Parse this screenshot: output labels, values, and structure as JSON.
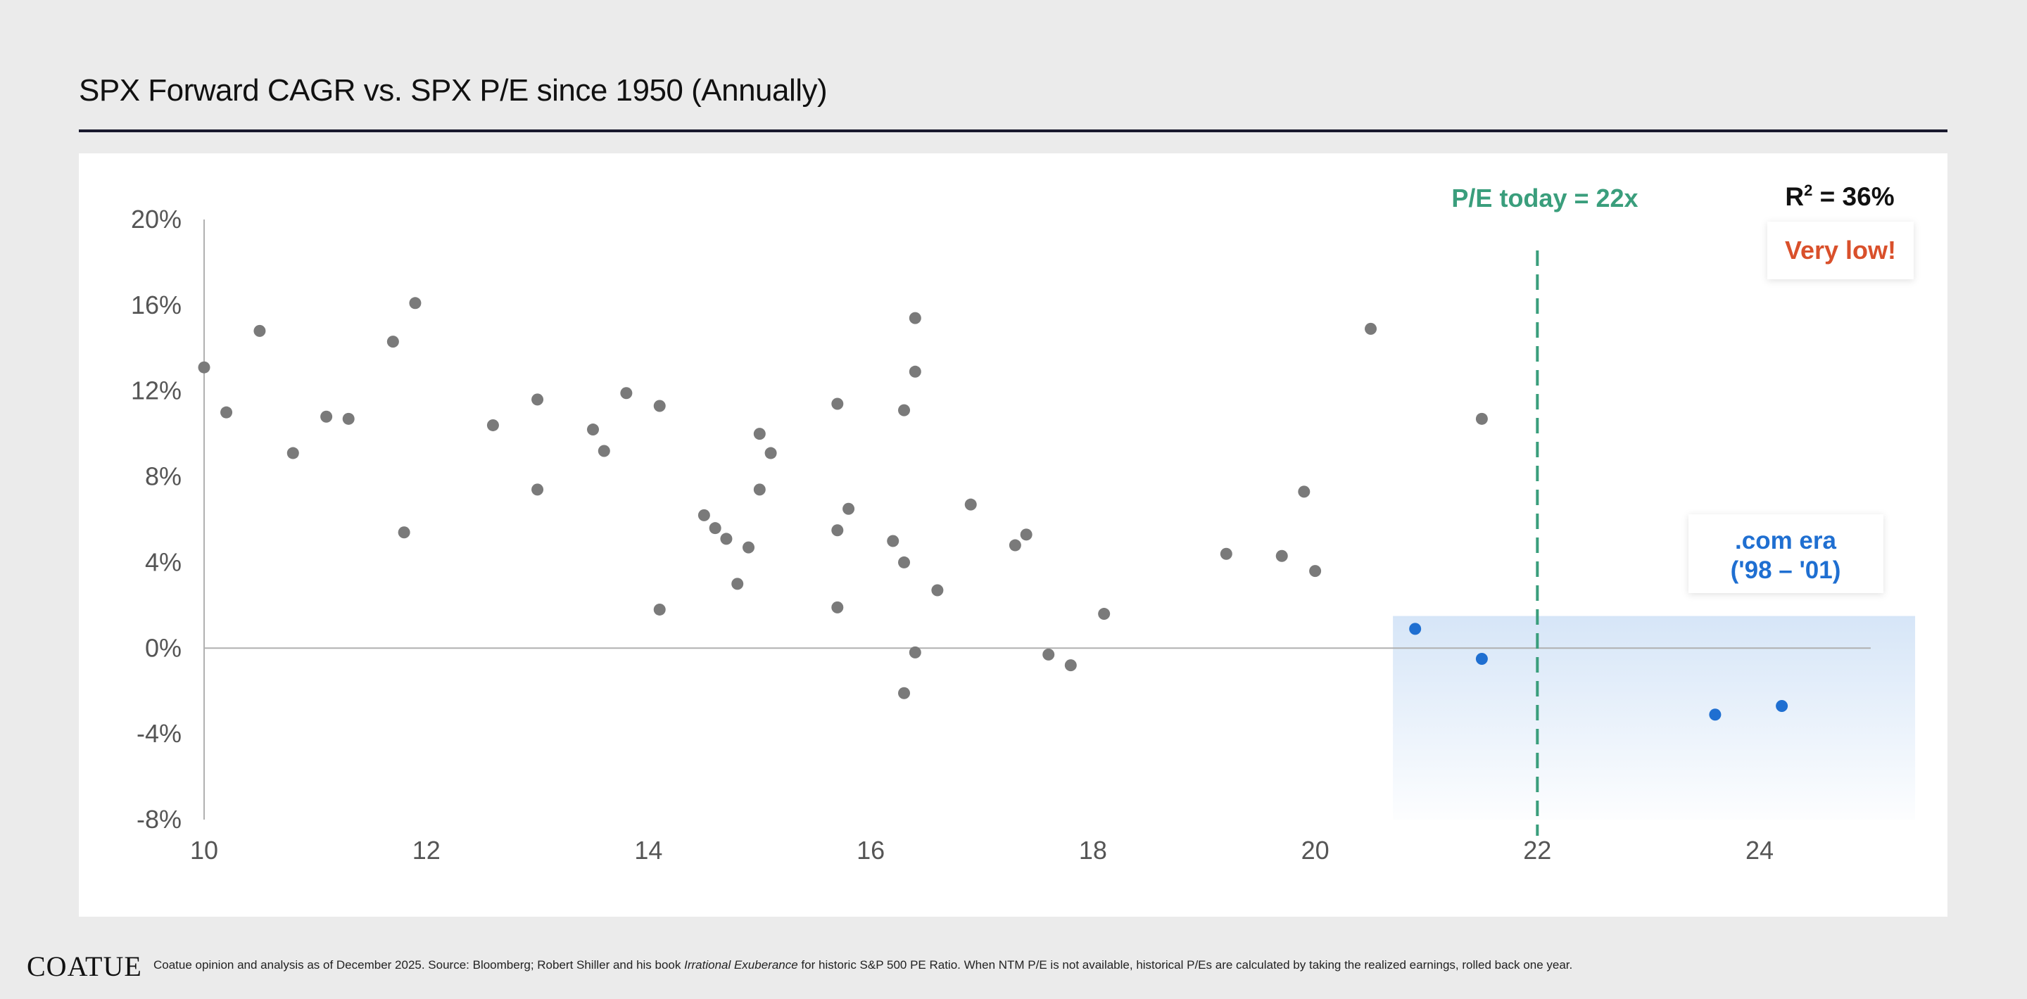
{
  "header": {
    "title": "SPX Forward CAGR vs. SPX P/E since 1950 (Annually)"
  },
  "footer": {
    "logo": "COATUE",
    "note_prefix": "Coatue opinion and analysis as of December 2025. Source: Bloomberg; Robert Shiller and his book ",
    "note_italic": "Irrational Exuberance",
    "note_suffix": " for historic S&P 500 PE Ratio. When NTM P/E is not available, historical P/Es are calculated by taking the realized earnings, rolled back one year."
  },
  "colors": {
    "point": "#7a7a7a",
    "highlight_point": "#1f6fd1",
    "today_line": "#3a9e7c",
    "very_low": "#d9502b",
    "axis": "#b0b0b0",
    "shade_top": "#cfe1f6"
  },
  "chart_data": {
    "type": "scatter",
    "xlim": [
      10,
      25
    ],
    "ylim": [
      -8,
      20
    ],
    "x_ticks": [
      "10",
      "12",
      "14",
      "16",
      "18",
      "20",
      "22",
      "24"
    ],
    "y_ticks": [
      "20%",
      "16%",
      "12%",
      "8%",
      "4%",
      "0%",
      "-4%",
      "-8%"
    ],
    "grid": false,
    "series": [
      {
        "points": [
          [
            10.0,
            13.1
          ],
          [
            10.2,
            11.0
          ],
          [
            10.5,
            14.8
          ],
          [
            10.8,
            9.1
          ],
          [
            11.1,
            10.8
          ],
          [
            11.3,
            10.7
          ],
          [
            11.7,
            14.3
          ],
          [
            11.8,
            5.4
          ],
          [
            11.9,
            16.1
          ],
          [
            12.6,
            10.4
          ],
          [
            13.0,
            11.6
          ],
          [
            13.0,
            7.4
          ],
          [
            13.5,
            10.2
          ],
          [
            13.6,
            9.2
          ],
          [
            13.8,
            11.9
          ],
          [
            14.1,
            11.3
          ],
          [
            14.1,
            1.8
          ],
          [
            14.5,
            6.2
          ],
          [
            14.6,
            5.6
          ],
          [
            14.7,
            5.1
          ],
          [
            14.8,
            3.0
          ],
          [
            14.9,
            4.7
          ],
          [
            15.0,
            10.0
          ],
          [
            15.0,
            7.4
          ],
          [
            15.1,
            9.1
          ],
          [
            15.7,
            1.9
          ],
          [
            15.7,
            5.5
          ],
          [
            15.7,
            11.4
          ],
          [
            15.8,
            6.5
          ],
          [
            16.2,
            5.0
          ],
          [
            16.3,
            4.0
          ],
          [
            16.3,
            -2.1
          ],
          [
            16.3,
            11.1
          ],
          [
            16.4,
            15.4
          ],
          [
            16.4,
            12.9
          ],
          [
            16.4,
            -0.2
          ],
          [
            16.6,
            2.7
          ],
          [
            16.9,
            6.7
          ],
          [
            17.3,
            4.8
          ],
          [
            17.4,
            5.3
          ],
          [
            17.6,
            -0.3
          ],
          [
            17.8,
            -0.8
          ],
          [
            18.1,
            1.6
          ],
          [
            19.2,
            4.4
          ],
          [
            19.7,
            4.3
          ],
          [
            19.9,
            7.3
          ],
          [
            20.0,
            3.6
          ],
          [
            20.5,
            14.9
          ],
          [
            21.5,
            10.7
          ]
        ]
      },
      {
        "points": [
          [
            20.9,
            0.9
          ],
          [
            21.5,
            -0.5
          ],
          [
            23.6,
            -3.1
          ],
          [
            24.2,
            -2.7
          ]
        ]
      }
    ],
    "annotations": {
      "pe_today_label": "P/E today = 22x",
      "pe_today_x": 22,
      "r2_prefix": "R",
      "r2_superscript": "2",
      "r2_value": " = 36%",
      "very_low": "Very low!",
      "dotcom_line1": ".com era",
      "dotcom_line2": "('98 – '01)"
    },
    "dotcom_region": {
      "x": [
        20.7,
        25.4
      ],
      "y": [
        -8,
        1.5
      ]
    }
  }
}
